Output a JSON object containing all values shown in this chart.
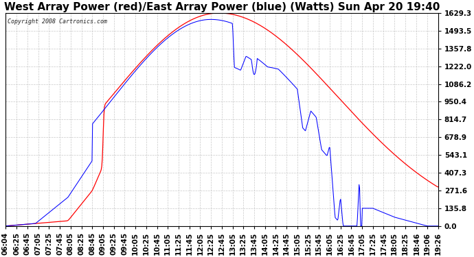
{
  "title": "West Array Power (red)/East Array Power (blue) (Watts) Sun Apr 20 19:40",
  "copyright": "Copyright 2008 Cartronics.com",
  "yticks": [
    0.0,
    135.8,
    271.6,
    407.3,
    543.1,
    678.9,
    814.7,
    950.4,
    1086.2,
    1222.0,
    1357.8,
    1493.5,
    1629.3
  ],
  "ymax": 1629.3,
  "ymin": 0.0,
  "bg_color": "#ffffff",
  "plot_bg_color": "#ffffff",
  "grid_color": "#c8c8c8",
  "red_color": "#ff0000",
  "blue_color": "#0000ff",
  "title_fontsize": 11,
  "tick_fontsize": 7.5,
  "x_labels": [
    "06:04",
    "06:25",
    "06:45",
    "07:05",
    "07:25",
    "07:45",
    "08:05",
    "08:25",
    "08:45",
    "09:05",
    "09:25",
    "09:45",
    "10:05",
    "10:25",
    "10:45",
    "11:05",
    "11:25",
    "11:45",
    "12:05",
    "12:25",
    "12:45",
    "13:05",
    "13:25",
    "13:45",
    "14:05",
    "14:25",
    "14:45",
    "15:05",
    "15:25",
    "15:45",
    "16:05",
    "16:25",
    "16:45",
    "17:05",
    "17:25",
    "17:45",
    "18:05",
    "18:25",
    "18:46",
    "19:06",
    "19:26"
  ]
}
